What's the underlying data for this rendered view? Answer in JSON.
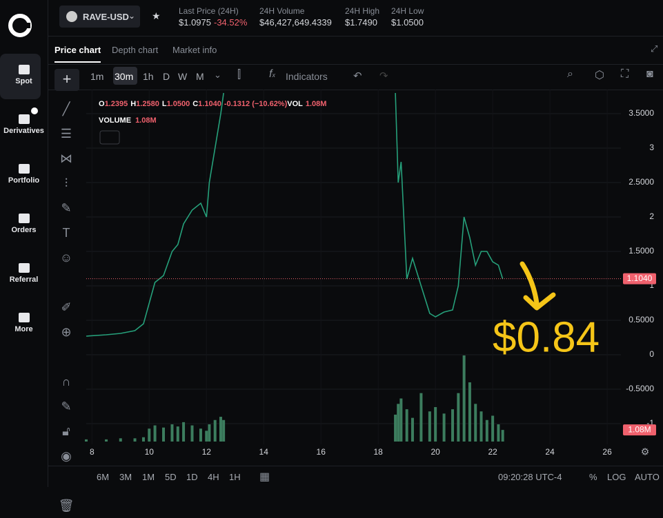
{
  "sidebar": {
    "items": [
      "Spot",
      "Derivatives",
      "Portfolio",
      "Orders",
      "Referral",
      "More"
    ]
  },
  "header": {
    "symbol": "RAVE-USD",
    "stats": [
      {
        "label": "Last Price (24H)",
        "value": "$1.0975",
        "change": "-34.52%"
      },
      {
        "label": "24H Volume",
        "value": "$46,427,649.4339"
      },
      {
        "label": "24H High",
        "value": "$1.7490"
      },
      {
        "label": "24H Low",
        "value": "$1.0500"
      }
    ]
  },
  "tabs": [
    "Price chart",
    "Depth chart",
    "Market info"
  ],
  "toolbar": {
    "intervals": [
      "1m",
      "30m",
      "1h",
      "D",
      "W",
      "M"
    ],
    "indicators": "Indicators"
  },
  "legend": {
    "o": "O",
    "o_val": "1.2395",
    "h": "H",
    "h_val": "1.2580",
    "l": "L",
    "l_val": "1.0500",
    "c": "C",
    "c_val": "1.1040",
    "change": "-0.1312 (−10.62%)",
    "vol": "VOL",
    "vol_val": "1.08M",
    "volume": "VOLUME",
    "volume_val": "1.08M"
  },
  "bottom": {
    "ranges": [
      "6M",
      "3M",
      "1M",
      "5D",
      "1D",
      "4H",
      "1H"
    ],
    "time": "09:20:28 UTC-4",
    "percent": "%",
    "log": "LOG",
    "auto": "AUTO"
  },
  "chart_data": {
    "type": "line",
    "x": [
      7.8,
      8.5,
      9.0,
      9.5,
      9.8,
      10.0,
      10.2,
      10.5,
      10.8,
      11.0,
      11.2,
      11.5,
      11.8,
      12.0,
      12.1,
      12.3,
      12.5,
      12.6,
      15,
      18.6,
      18.7,
      18.8,
      19.0,
      19.2,
      19.5,
      19.8,
      20.0,
      20.3,
      20.6,
      20.8,
      21.0,
      21.2,
      21.4,
      21.6,
      21.8,
      22.0,
      22.2,
      22.35
    ],
    "series": [
      {
        "name": "Price",
        "color": "#26a17b",
        "values": [
          0.27,
          0.29,
          0.31,
          0.35,
          0.45,
          0.75,
          1.05,
          1.15,
          1.5,
          1.6,
          1.9,
          2.1,
          2.2,
          2.0,
          2.5,
          3.0,
          3.5,
          3.8,
          null,
          3.8,
          2.5,
          2.8,
          1.1,
          1.4,
          1.0,
          0.6,
          0.55,
          0.62,
          0.65,
          1.0,
          2.0,
          1.7,
          1.3,
          1.5,
          1.5,
          1.35,
          1.3,
          1.1
        ]
      },
      {
        "name": "VOLUME",
        "color": "#3c7d5e",
        "axis": "volume",
        "values": [
          0.2,
          0.2,
          0.3,
          0.3,
          0.4,
          1.2,
          1.5,
          1.3,
          1.6,
          1.4,
          1.8,
          1.5,
          1.2,
          1.0,
          1.6,
          2.0,
          2.3,
          2.0,
          null,
          2.5,
          3.5,
          4.0,
          3.0,
          2.2,
          4.5,
          2.8,
          3.2,
          2.6,
          3.0,
          4.5,
          8.0,
          5.5,
          3.5,
          2.8,
          2.0,
          2.4,
          1.6,
          1.08
        ]
      }
    ],
    "xlim": [
      7.8,
      26.48
    ],
    "xticks": [
      8,
      10,
      12,
      14,
      16,
      18,
      20,
      22,
      24,
      26
    ],
    "ylim": [
      -1.3,
      3.85
    ],
    "yticks": [
      {
        "value": -1,
        "label": "-1"
      },
      {
        "value": -0.5,
        "label": "-0.5000"
      },
      0,
      {
        "value": 0.5,
        "label": "0.5000"
      },
      1,
      {
        "value": 1.5,
        "label": "1.5000"
      },
      2,
      {
        "value": 2.5,
        "label": "2.5000"
      },
      3,
      {
        "value": 3.5,
        "label": "3.5000"
      }
    ],
    "vlim": [
      0,
      8
    ],
    "grid": true,
    "price_line": {
      "value": 1.104,
      "label": "1.1040"
    },
    "volume_line": {
      "value": 1.08,
      "label": "1.08M"
    },
    "annotation": "$0.84"
  }
}
